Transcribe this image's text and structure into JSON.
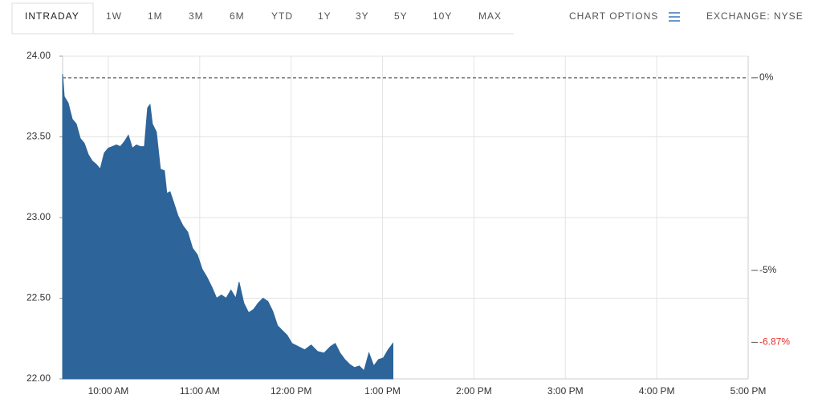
{
  "chart_data": {
    "type": "area",
    "range_tabs": [
      "INTRADAY",
      "1W",
      "1M",
      "3M",
      "6M",
      "YTD",
      "1Y",
      "3Y",
      "5Y",
      "10Y",
      "MAX"
    ],
    "chart_options": "CHART OPTIONS",
    "exchange": "EXCHANGE: NYSE",
    "x": [
      9.5,
      9.518,
      9.561,
      9.605,
      9.649,
      9.693,
      9.737,
      9.781,
      9.825,
      9.868,
      9.912,
      9.956,
      10.0,
      10.044,
      10.088,
      10.132,
      10.175,
      10.219,
      10.263,
      10.307,
      10.351,
      10.395,
      10.43,
      10.456,
      10.482,
      10.526,
      10.57,
      10.614,
      10.64,
      10.675,
      10.711,
      10.763,
      10.816,
      10.868,
      10.921,
      10.974,
      11.026,
      11.079,
      11.132,
      11.184,
      11.237,
      11.289,
      11.342,
      11.395,
      11.43,
      11.482,
      11.535,
      11.588,
      11.64,
      11.693,
      11.746,
      11.798,
      11.851,
      11.904,
      11.956,
      12.009,
      12.079,
      12.149,
      12.219,
      12.289,
      12.36,
      12.43,
      12.482,
      12.535,
      12.588,
      12.64,
      12.693,
      12.746,
      12.798,
      12.851,
      12.904,
      12.956,
      13.009,
      13.061,
      13.114
    ],
    "series": [
      {
        "color": "#2d6499",
        "values": [
          23.89,
          23.75,
          23.71,
          23.61,
          23.58,
          23.49,
          23.46,
          23.39,
          23.35,
          23.33,
          23.3,
          23.4,
          23.43,
          23.44,
          23.45,
          23.44,
          23.47,
          23.51,
          23.43,
          23.45,
          23.44,
          23.44,
          23.68,
          23.7,
          23.58,
          23.53,
          23.3,
          23.29,
          23.15,
          23.16,
          23.1,
          23.01,
          22.95,
          22.91,
          22.81,
          22.77,
          22.68,
          22.63,
          22.57,
          22.5,
          22.52,
          22.5,
          22.55,
          22.5,
          22.6,
          22.47,
          22.41,
          22.43,
          22.47,
          22.5,
          22.48,
          22.42,
          22.33,
          22.3,
          22.27,
          22.22,
          22.2,
          22.18,
          22.21,
          22.17,
          22.16,
          22.2,
          22.22,
          22.16,
          22.12,
          22.09,
          22.07,
          22.08,
          22.05,
          22.16,
          22.08,
          22.12,
          22.13,
          22.18,
          22.22
        ]
      }
    ],
    "xlim": [
      9.5,
      17
    ],
    "xticks": [
      {
        "value": 10,
        "label": "10:00 AM"
      },
      {
        "value": 11,
        "label": "11:00 AM"
      },
      {
        "value": 12,
        "label": "12:00 PM"
      },
      {
        "value": 13,
        "label": "1:00 PM"
      },
      {
        "value": 14,
        "label": "2:00 PM"
      },
      {
        "value": 15,
        "label": "3:00 PM"
      },
      {
        "value": 16,
        "label": "4:00 PM"
      },
      {
        "value": 17,
        "label": "5:00 PM"
      }
    ],
    "ylim": [
      22,
      24
    ],
    "yticks": [
      {
        "value": 22,
        "label": "22.00"
      },
      {
        "value": 22.5,
        "label": "22.50"
      },
      {
        "value": 23,
        "label": "23.00"
      },
      {
        "value": 23.5,
        "label": "23.50"
      },
      {
        "value": 24,
        "label": "24.00"
      }
    ],
    "y2lim": [
      -7.82,
      0.56
    ],
    "y2ticks": [
      {
        "value": 0,
        "label": "0%"
      },
      {
        "value": -5,
        "label": "-5%"
      },
      {
        "value": -6.87,
        "label": "-6.87%",
        "color": "#e8312f"
      }
    ],
    "grid": true
  }
}
